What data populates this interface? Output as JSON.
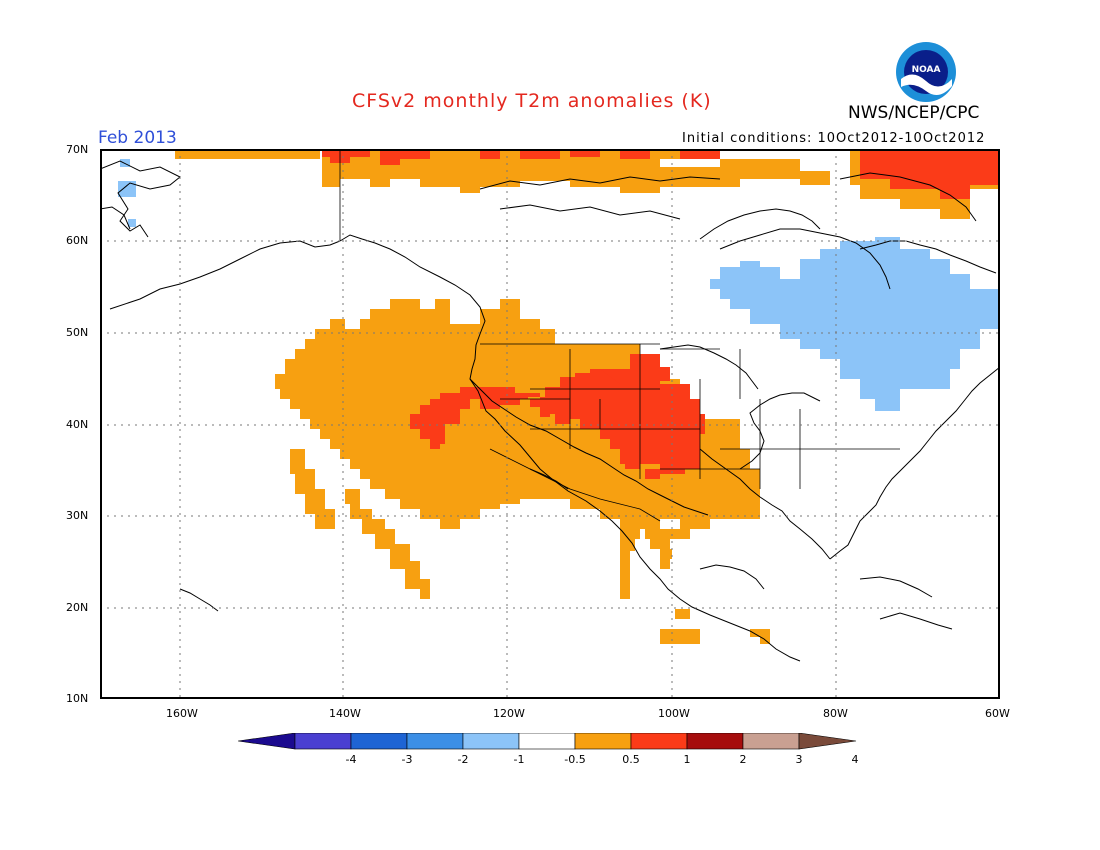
{
  "header": {
    "title": "CFSv2 monthly T2m anomalies (K)",
    "organization": "NWS/NCEP/CPC",
    "logo_text": "NOAA",
    "valid_period": "Feb 2013",
    "initial_conditions": "Initial conditions: 10Oct2012-10Oct2012"
  },
  "map": {
    "lat_range": [
      10,
      70
    ],
    "lon_range": [
      -170,
      -60
    ],
    "lat_labels": [
      "10N",
      "20N",
      "30N",
      "40N",
      "50N",
      "60N",
      "70N"
    ],
    "lon_labels": [
      "160W",
      "140W",
      "120W",
      "100W",
      "80W",
      "60W"
    ],
    "grid_style": "dotted",
    "anomaly_regions": [
      {
        "category": "0.5 to 1",
        "area": "Southwestern and central United States, Texas, northern Mexico"
      },
      {
        "category": "1 to 2",
        "area": "Central Rockies, Great Plains and Four Corners"
      },
      {
        "category": "0.5 to 1",
        "area": "Arctic coast of Canada and western Greenland"
      },
      {
        "category": "1 to 2",
        "area": "Arctic islands and western Greenland coast"
      },
      {
        "category": "-1 to -0.5",
        "area": "Hudson Bay, Quebec, Labrador and New England"
      },
      {
        "category": "-1 to -0.5",
        "area": "Eastern Siberia coast"
      }
    ]
  },
  "colorbar": {
    "labels": [
      "-4",
      "-3",
      "-2",
      "-1",
      "-0.5",
      "0.5",
      "1",
      "2",
      "3",
      "4"
    ],
    "colors": [
      "#1b0a8f",
      "#4a3fd1",
      "#1e64d4",
      "#3c8fe6",
      "#8cc4f8",
      "#ffffff",
      "#f7a011",
      "#fb3b18",
      "#a60d0d",
      "#c9a092",
      "#7a4a3a"
    ]
  },
  "palette": {
    "warm1": "#f7a011",
    "warm2": "#fb3b18",
    "cool1": "#8cc4f8",
    "title_red": "#e4281f",
    "period_blue": "#2f4fd8"
  }
}
